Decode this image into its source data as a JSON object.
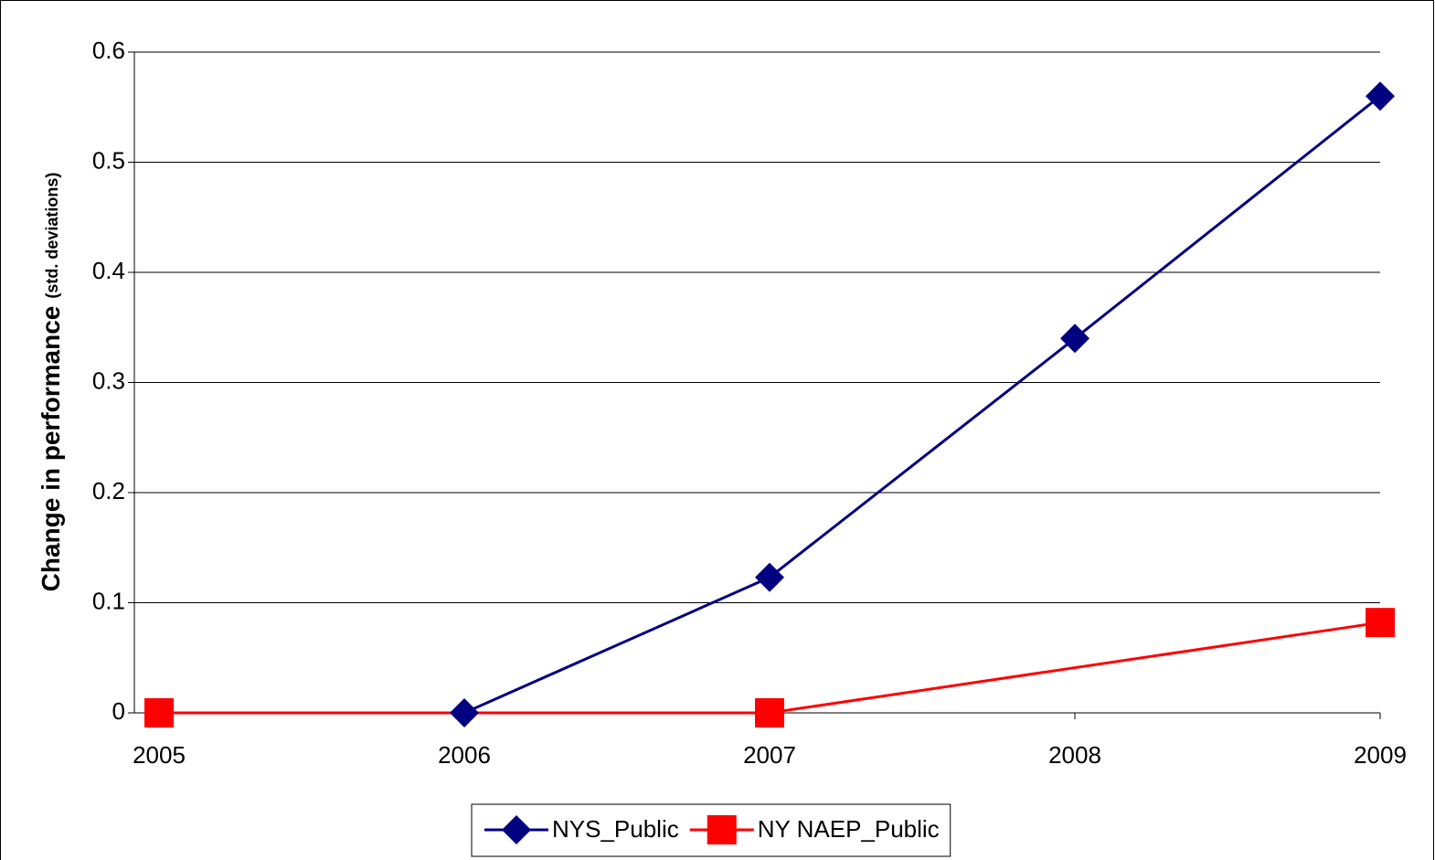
{
  "chart_data": {
    "type": "line",
    "y_label": "Change in performance",
    "y_label_unit": "(std. deviations)",
    "xlim": [
      2005,
      2009
    ],
    "xticks": [
      2005,
      2006,
      2007,
      2008,
      2009
    ],
    "ylim": [
      0,
      0.6
    ],
    "yticks": [
      0,
      0.1,
      0.2,
      0.3,
      0.4,
      0.5,
      0.6
    ],
    "grid": true,
    "legend": "bottom",
    "series": [
      {
        "name": "NYS_Public",
        "color": "#000080",
        "marker": "diamond",
        "x": [
          2006,
          2007,
          2008,
          2009
        ],
        "values": [
          0,
          0.123,
          0.34,
          0.56
        ]
      },
      {
        "name": "NY NAEP_Public",
        "color": "#ff0000",
        "marker": "square",
        "x": [
          2005,
          2007,
          2009
        ],
        "values": [
          0,
          0,
          0.082
        ]
      }
    ]
  }
}
